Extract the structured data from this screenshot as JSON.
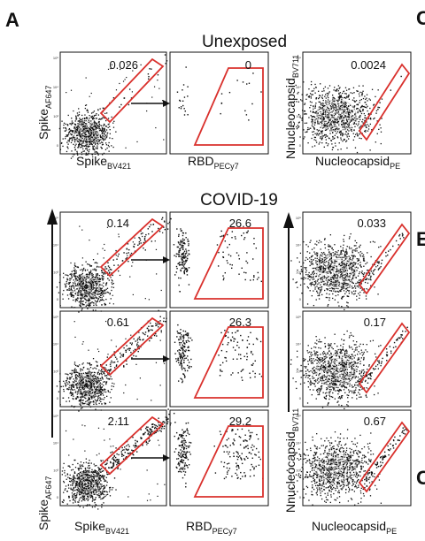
{
  "panel_label": "A",
  "edge_labels": [
    "C",
    "E",
    "C"
  ],
  "chart_data": {
    "type": "scatter",
    "groups": [
      {
        "title": "Unexposed",
        "rows": [
          {
            "spike_gate": "0.026",
            "rbd_gate": "0",
            "nucleocapsid_gate": "0.0024"
          }
        ]
      },
      {
        "title": "COVID-19",
        "rows": [
          {
            "spike_gate": "0.14",
            "rbd_gate": "26.6",
            "nucleocapsid_gate": "0.033"
          },
          {
            "spike_gate": "0.61",
            "rbd_gate": "26.3",
            "nucleocapsid_gate": "0.17"
          },
          {
            "spike_gate": "2.11",
            "rbd_gate": "29.2",
            "nucleocapsid_gate": "0.67"
          }
        ]
      }
    ],
    "axes": {
      "spike_y": {
        "base": "Spike",
        "sub": "AF647"
      },
      "spike_x": {
        "base": "Spike",
        "sub": "BV421"
      },
      "rbd_x": {
        "base": "RBD",
        "sub": "PECy7"
      },
      "nc_y": {
        "base": "Nnucleocapsid",
        "sub": "BV711"
      },
      "nc_y_lower": {
        "base": "Nnucleocapsid",
        "sub": "BV711"
      },
      "nc_x": {
        "base": "Nucleocapsid",
        "sub": "PE"
      }
    },
    "tick_labels": [
      "10⁵",
      "10⁴",
      "10³",
      "0"
    ],
    "colors": {
      "gate": "#d9302c",
      "dots": "#111111",
      "contour": "#cccccc"
    }
  }
}
